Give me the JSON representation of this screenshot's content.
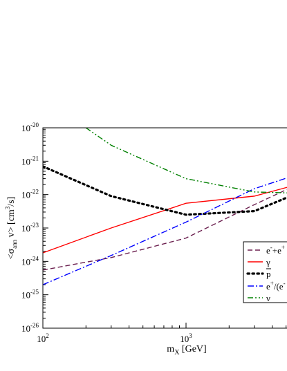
{
  "chart_data": {
    "type": "line",
    "title": "",
    "xlabel": "m_X [GeV]",
    "ylabel": "<σ_ann v> [cm^3/s]",
    "xscale": "log",
    "yscale": "log",
    "xlim": [
      100,
      6000
    ],
    "ylim": [
      1e-26,
      1e-20
    ],
    "grid": false,
    "legend_position": "right",
    "xticks": [
      {
        "value": 100,
        "base": "10",
        "exp": "2"
      },
      {
        "value": 1000,
        "base": "10",
        "exp": "3"
      }
    ],
    "yticks": [
      {
        "value": 1e-26,
        "base": "10",
        "exp": "-26"
      },
      {
        "value": 1e-25,
        "base": "10",
        "exp": "-25"
      },
      {
        "value": 1e-24,
        "base": "10",
        "exp": "-24"
      },
      {
        "value": 1e-23,
        "base": "10",
        "exp": "-23"
      },
      {
        "value": 1e-22,
        "base": "10",
        "exp": "-22"
      },
      {
        "value": 1e-21,
        "base": "10",
        "exp": "-21"
      },
      {
        "value": 1e-20,
        "base": "10",
        "exp": "-20"
      }
    ],
    "series": [
      {
        "name": "e⁻+e⁺",
        "color": "#6b1f4f",
        "dash": "dash",
        "x": [
          100,
          300,
          1000,
          3000,
          6000
        ],
        "y": [
          5.5e-25,
          1.3e-24,
          5e-24,
          5e-23,
          2e-22
        ]
      },
      {
        "name": "γ",
        "color": "#ff0000",
        "dash": "solid",
        "x": [
          100,
          300,
          1000,
          3000,
          6000
        ],
        "y": [
          1.8e-24,
          1e-23,
          5.5e-23,
          9e-23,
          2e-22
        ]
      },
      {
        "name": "p̄",
        "color": "#000000",
        "dash": "dot",
        "x": [
          100,
          300,
          1000,
          3000,
          6000
        ],
        "y": [
          7e-22,
          9e-23,
          2.5e-23,
          3.2e-23,
          1.1e-22
        ]
      },
      {
        "name": "e⁺/(e⁻+e⁺)",
        "color": "#0000ff",
        "dash": "dashdot",
        "x": [
          100,
          300,
          1000,
          3000,
          6000
        ],
        "y": [
          2e-25,
          1.5e-24,
          1.5e-23,
          1.5e-22,
          4e-22
        ]
      },
      {
        "name": "ν",
        "color": "#008000",
        "dash": "dashdotdot",
        "x": [
          200,
          300,
          1000,
          3000,
          6000
        ],
        "y": [
          1e-20,
          3e-21,
          3e-22,
          1.2e-22,
          1.1e-22
        ]
      }
    ]
  },
  "legend_entries": [
    {
      "pre": "e",
      "sup1": "-",
      "mid": "+e",
      "sup2": "+"
    },
    {
      "pre": "γ"
    },
    {
      "pre": "p",
      "overline": true
    },
    {
      "pre": "e",
      "sup1": "+",
      "mid": "/(e",
      "sup2": "-"
    },
    {
      "pre": "ν"
    }
  ]
}
